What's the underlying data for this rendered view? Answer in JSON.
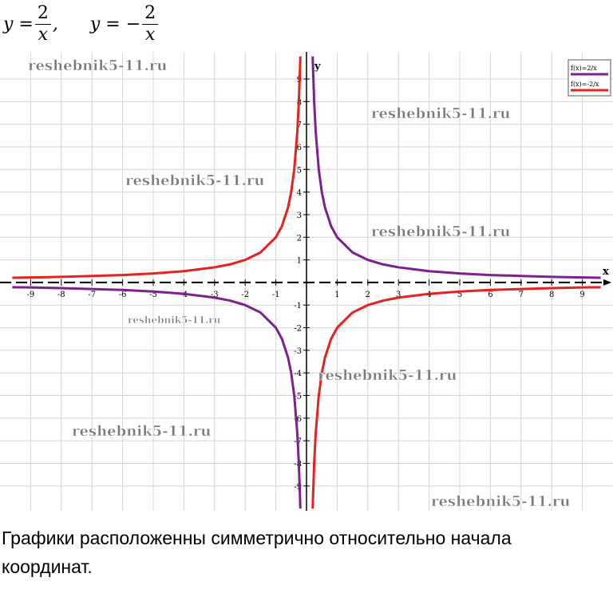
{
  "formulas": [
    {
      "lhs": "y = ",
      "num": "2",
      "den": "x",
      "tail": ","
    },
    {
      "lhs": "y = −",
      "num": "2",
      "den": "x"
    }
  ],
  "watermarks": [
    "reshebnik5-11.ru",
    "reshebnik5-11.ru",
    "reshebnik5-11.ru",
    "reshebnik5-11.ru",
    "reshebnik5-11.ru",
    "reshebnik5-11.ru",
    "reshebnik5-11.ru",
    "reshebnik5-11.ru"
  ],
  "caption": "Графики расположенны симметрично относительно начала координат.",
  "chart_data": {
    "type": "line",
    "x_label": "x",
    "y_label": "y",
    "x": [
      -9.6,
      -9,
      -8,
      -7,
      -6,
      -5,
      -4,
      -3,
      -2.5,
      -2,
      -1.5,
      -1,
      -0.8,
      -0.6,
      -0.5,
      -0.4,
      -0.3,
      -0.25,
      -0.2,
      0,
      0.2,
      0.25,
      0.3,
      0.4,
      0.5,
      0.6,
      0.8,
      1,
      1.5,
      2,
      2.5,
      3,
      4,
      5,
      6,
      7,
      8,
      9,
      9.6
    ],
    "series": [
      {
        "name": "f(x)=2/x",
        "color": "#7d1f8f",
        "values": [
          -0.21,
          -0.22,
          -0.25,
          -0.29,
          -0.33,
          -0.4,
          -0.5,
          -0.67,
          -0.8,
          -1,
          -1.33,
          -2,
          -2.5,
          -3.33,
          -4,
          -5,
          -6.67,
          -8,
          -10,
          null,
          10,
          8,
          6.67,
          5,
          4,
          3.33,
          2.5,
          2,
          1.33,
          1,
          0.8,
          0.67,
          0.5,
          0.4,
          0.33,
          0.29,
          0.25,
          0.22,
          0.21
        ]
      },
      {
        "name": "f(x)=-2/x",
        "color": "#e8201f",
        "values": [
          0.21,
          0.22,
          0.25,
          0.29,
          0.33,
          0.4,
          0.5,
          0.67,
          0.8,
          1,
          1.33,
          2,
          2.5,
          3.33,
          4,
          5,
          6.67,
          8,
          10,
          null,
          -10,
          -8,
          -6.67,
          -5,
          -4,
          -3.33,
          -2.5,
          -2,
          -1.33,
          -1,
          -0.8,
          -0.67,
          -0.5,
          -0.4,
          -0.33,
          -0.29,
          -0.25,
          -0.22,
          -0.21
        ]
      }
    ],
    "xlim": [
      -10,
      10
    ],
    "ylim": [
      -10.1,
      10.2
    ],
    "xticks": [
      -9,
      -8,
      -7,
      -6,
      -5,
      -4,
      -3,
      -2,
      -1,
      1,
      2,
      3,
      4,
      5,
      6,
      7,
      8,
      9
    ],
    "yticks": [
      -9,
      -8,
      -7,
      -6,
      -5,
      -4,
      -3,
      -2,
      -1,
      1,
      2,
      3,
      4,
      5,
      6,
      7,
      8,
      9
    ],
    "grid": true,
    "legend": "top-right"
  }
}
